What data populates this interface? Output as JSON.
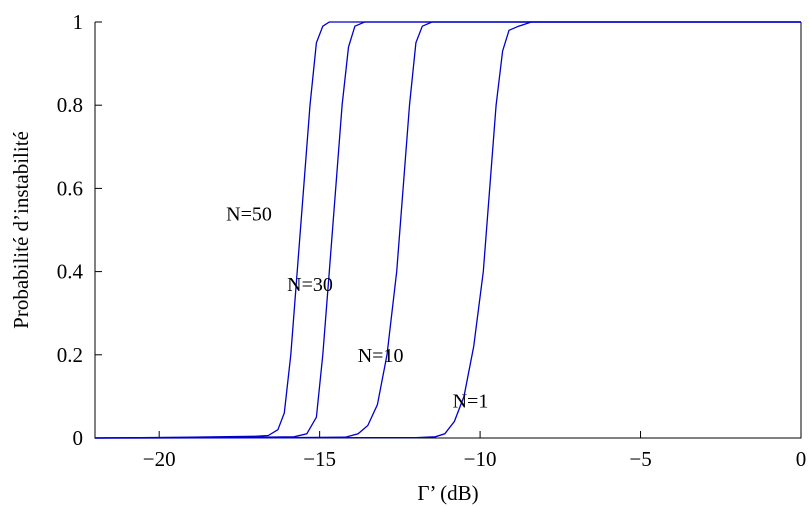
{
  "chart_data": {
    "type": "line",
    "xlabel": "Γ’ (dB)",
    "ylabel": "Probabilité d’instabilité",
    "xlim": [
      -22,
      0
    ],
    "ylim": [
      0,
      1
    ],
    "x_ticks": [
      -20,
      -15,
      -10,
      -5,
      0
    ],
    "x_tick_labels": [
      "−20",
      "−15",
      "−10",
      "−5",
      "0"
    ],
    "y_ticks": [
      0,
      0.2,
      0.4,
      0.6,
      0.8,
      1
    ],
    "y_tick_labels": [
      "0",
      "0.2",
      "0.4",
      "0.6",
      "0.8",
      "1"
    ],
    "grid": false,
    "line_color": "#0000cc",
    "series": [
      {
        "name": "N=50",
        "points": [
          [
            -22,
            0
          ],
          [
            -19,
            0.002
          ],
          [
            -17,
            0.004
          ],
          [
            -16.6,
            0.006
          ],
          [
            -16.3,
            0.02
          ],
          [
            -16.1,
            0.06
          ],
          [
            -15.9,
            0.2
          ],
          [
            -15.7,
            0.4
          ],
          [
            -15.5,
            0.6
          ],
          [
            -15.3,
            0.8
          ],
          [
            -15.1,
            0.95
          ],
          [
            -14.9,
            0.99
          ],
          [
            -14.7,
            1
          ],
          [
            0,
            1
          ]
        ]
      },
      {
        "name": "N=30",
        "points": [
          [
            -22,
            0
          ],
          [
            -18,
            0.001
          ],
          [
            -15.8,
            0.003
          ],
          [
            -15.4,
            0.01
          ],
          [
            -15.1,
            0.05
          ],
          [
            -14.9,
            0.2
          ],
          [
            -14.7,
            0.4
          ],
          [
            -14.5,
            0.6
          ],
          [
            -14.3,
            0.8
          ],
          [
            -14.1,
            0.94
          ],
          [
            -13.9,
            0.99
          ],
          [
            -13.6,
            1
          ],
          [
            0,
            1
          ]
        ]
      },
      {
        "name": "N=10",
        "points": [
          [
            -22,
            0
          ],
          [
            -16,
            0.001
          ],
          [
            -14.2,
            0.002
          ],
          [
            -13.8,
            0.01
          ],
          [
            -13.5,
            0.03
          ],
          [
            -13.2,
            0.08
          ],
          [
            -12.9,
            0.2
          ],
          [
            -12.6,
            0.4
          ],
          [
            -12.4,
            0.6
          ],
          [
            -12.2,
            0.8
          ],
          [
            -12.0,
            0.95
          ],
          [
            -11.8,
            0.99
          ],
          [
            -11.5,
            1
          ],
          [
            0,
            1
          ]
        ]
      },
      {
        "name": "N=1",
        "points": [
          [
            -22,
            0
          ],
          [
            -12,
            0.001
          ],
          [
            -11.4,
            0.003
          ],
          [
            -11.1,
            0.01
          ],
          [
            -10.8,
            0.04
          ],
          [
            -10.5,
            0.1
          ],
          [
            -10.2,
            0.22
          ],
          [
            -9.9,
            0.4
          ],
          [
            -9.7,
            0.6
          ],
          [
            -9.5,
            0.8
          ],
          [
            -9.3,
            0.93
          ],
          [
            -9.1,
            0.98
          ],
          [
            -8.8,
            0.99
          ],
          [
            -8.4,
            1
          ],
          [
            0,
            1
          ]
        ]
      }
    ],
    "annotations": [
      {
        "text": "N=50",
        "x": -17.2,
        "y": 0.54
      },
      {
        "text": "N=30",
        "x": -15.3,
        "y": 0.37
      },
      {
        "text": "N=10",
        "x": -13.1,
        "y": 0.2
      },
      {
        "text": "N=1",
        "x": -10.3,
        "y": 0.09
      }
    ]
  }
}
